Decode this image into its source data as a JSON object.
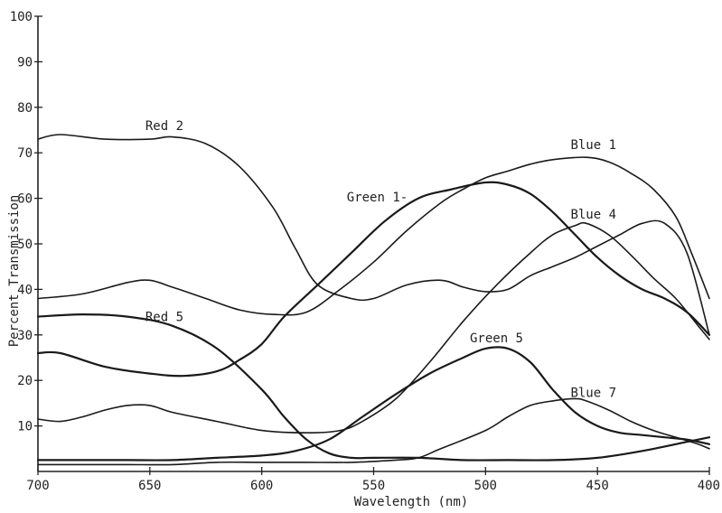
{
  "chart_data": {
    "type": "line",
    "xlabel": "Wavelength (nm)",
    "ylabel": "Percent Transmission",
    "xlim": [
      700,
      400
    ],
    "ylim": [
      0,
      100
    ],
    "x_ticks": [
      700,
      650,
      600,
      550,
      500,
      450,
      400
    ],
    "y_ticks": [
      10,
      20,
      30,
      40,
      50,
      60,
      70,
      80,
      90,
      100
    ],
    "x_tick_labels": [
      "700",
      "650",
      "600",
      "550",
      "500",
      "450",
      "400"
    ],
    "y_tick_labels": [
      "10",
      "20",
      "30",
      "40",
      "50",
      "60",
      "70",
      "80",
      "90",
      "100"
    ],
    "grid": false,
    "series": [
      {
        "name": "Red 2",
        "stroke": 1.6,
        "points": [
          [
            700,
            73
          ],
          [
            690,
            74
          ],
          [
            670,
            73
          ],
          [
            650,
            73
          ],
          [
            640,
            73.5
          ],
          [
            625,
            72
          ],
          [
            610,
            67
          ],
          [
            595,
            58
          ],
          [
            585,
            49
          ],
          [
            575,
            41
          ],
          [
            560,
            38
          ],
          [
            550,
            38
          ],
          [
            535,
            41
          ],
          [
            520,
            42
          ],
          [
            510,
            40.5
          ],
          [
            500,
            39.5
          ],
          [
            490,
            40
          ],
          [
            480,
            43
          ],
          [
            470,
            45
          ],
          [
            460,
            47
          ],
          [
            450,
            49.5
          ],
          [
            440,
            52
          ],
          [
            430,
            54.5
          ],
          [
            420,
            54.5
          ],
          [
            410,
            48
          ],
          [
            400,
            30
          ]
        ]
      },
      {
        "name": "Red 5",
        "stroke": 2.2,
        "points": [
          [
            700,
            34
          ],
          [
            680,
            34.5
          ],
          [
            660,
            34
          ],
          [
            640,
            32
          ],
          [
            620,
            27
          ],
          [
            600,
            18
          ],
          [
            590,
            12
          ],
          [
            580,
            7
          ],
          [
            570,
            4
          ],
          [
            560,
            3
          ],
          [
            550,
            3
          ],
          [
            530,
            3
          ],
          [
            510,
            2.5
          ],
          [
            490,
            2.5
          ],
          [
            470,
            2.5
          ],
          [
            450,
            3
          ],
          [
            430,
            4.5
          ],
          [
            410,
            6.5
          ],
          [
            400,
            7.5
          ]
        ]
      },
      {
        "name": "Green 1",
        "stroke": 2.2,
        "points": [
          [
            700,
            26
          ],
          [
            690,
            26
          ],
          [
            670,
            23
          ],
          [
            650,
            21.5
          ],
          [
            635,
            21
          ],
          [
            620,
            22
          ],
          [
            610,
            24.5
          ],
          [
            600,
            28
          ],
          [
            590,
            34
          ],
          [
            575,
            41
          ],
          [
            560,
            48
          ],
          [
            545,
            55
          ],
          [
            530,
            60
          ],
          [
            515,
            62
          ],
          [
            500,
            63.5
          ],
          [
            490,
            63
          ],
          [
            480,
            61
          ],
          [
            470,
            57
          ],
          [
            460,
            52
          ],
          [
            450,
            47
          ],
          [
            440,
            43
          ],
          [
            430,
            40
          ],
          [
            420,
            38
          ],
          [
            410,
            35
          ],
          [
            400,
            30
          ]
        ]
      },
      {
        "name": "Blue 1",
        "stroke": 1.6,
        "points": [
          [
            700,
            38
          ],
          [
            680,
            39
          ],
          [
            660,
            41.5
          ],
          [
            650,
            42
          ],
          [
            640,
            40.5
          ],
          [
            625,
            38
          ],
          [
            610,
            35.5
          ],
          [
            595,
            34.5
          ],
          [
            580,
            35
          ],
          [
            565,
            40
          ],
          [
            550,
            46
          ],
          [
            535,
            53
          ],
          [
            520,
            59
          ],
          [
            510,
            62
          ],
          [
            500,
            64.5
          ],
          [
            490,
            66
          ],
          [
            480,
            67.5
          ],
          [
            470,
            68.5
          ],
          [
            455,
            69
          ],
          [
            445,
            68
          ],
          [
            435,
            65.5
          ],
          [
            425,
            62
          ],
          [
            415,
            56
          ],
          [
            408,
            48
          ],
          [
            400,
            38
          ]
        ]
      },
      {
        "name": "Blue 4",
        "stroke": 1.6,
        "points": [
          [
            700,
            11.5
          ],
          [
            690,
            11
          ],
          [
            680,
            12
          ],
          [
            670,
            13.5
          ],
          [
            660,
            14.5
          ],
          [
            650,
            14.5
          ],
          [
            640,
            13
          ],
          [
            620,
            11
          ],
          [
            600,
            9
          ],
          [
            580,
            8.5
          ],
          [
            565,
            9
          ],
          [
            555,
            11
          ],
          [
            540,
            16
          ],
          [
            525,
            24
          ],
          [
            510,
            33
          ],
          [
            495,
            41
          ],
          [
            480,
            48
          ],
          [
            470,
            52
          ],
          [
            460,
            54
          ],
          [
            455,
            54.5
          ],
          [
            445,
            52
          ],
          [
            435,
            47.5
          ],
          [
            425,
            42.5
          ],
          [
            415,
            38
          ],
          [
            405,
            32
          ],
          [
            400,
            29
          ]
        ]
      },
      {
        "name": "Green 5",
        "stroke": 2.2,
        "points": [
          [
            700,
            2.5
          ],
          [
            680,
            2.5
          ],
          [
            660,
            2.5
          ],
          [
            640,
            2.5
          ],
          [
            620,
            3
          ],
          [
            600,
            3.5
          ],
          [
            585,
            4.5
          ],
          [
            570,
            7
          ],
          [
            555,
            12
          ],
          [
            540,
            17
          ],
          [
            525,
            21.5
          ],
          [
            510,
            25
          ],
          [
            500,
            27
          ],
          [
            490,
            27
          ],
          [
            480,
            24
          ],
          [
            470,
            18
          ],
          [
            460,
            13
          ],
          [
            450,
            10
          ],
          [
            440,
            8.5
          ],
          [
            430,
            8
          ],
          [
            420,
            7.5
          ],
          [
            410,
            7
          ],
          [
            400,
            6
          ]
        ]
      },
      {
        "name": "Blue 7",
        "stroke": 1.6,
        "points": [
          [
            700,
            1.5
          ],
          [
            680,
            1.5
          ],
          [
            660,
            1.5
          ],
          [
            640,
            1.5
          ],
          [
            620,
            2
          ],
          [
            600,
            2
          ],
          [
            580,
            2
          ],
          [
            560,
            2
          ],
          [
            540,
            2.5
          ],
          [
            530,
            3
          ],
          [
            520,
            5
          ],
          [
            500,
            9
          ],
          [
            490,
            12
          ],
          [
            480,
            14.5
          ],
          [
            470,
            15.5
          ],
          [
            460,
            16
          ],
          [
            455,
            15.5
          ],
          [
            445,
            13.5
          ],
          [
            435,
            11
          ],
          [
            425,
            9
          ],
          [
            415,
            7.5
          ],
          [
            405,
            6
          ],
          [
            400,
            5
          ]
        ]
      }
    ],
    "labels": [
      {
        "text": "Red 2",
        "x": 652,
        "y": 75
      },
      {
        "text": "Red 5",
        "x": 652,
        "y": 33
      },
      {
        "text": "Green 1-",
        "x": 562,
        "y": 59.3
      },
      {
        "text": "Blue 1",
        "x": 462,
        "y": 70.8
      },
      {
        "text": "Blue 4",
        "x": 462,
        "y": 55.6
      },
      {
        "text": "Green 5",
        "x": 507,
        "y": 28.4
      },
      {
        "text": "Blue 7",
        "x": 462,
        "y": 16.4
      }
    ]
  }
}
